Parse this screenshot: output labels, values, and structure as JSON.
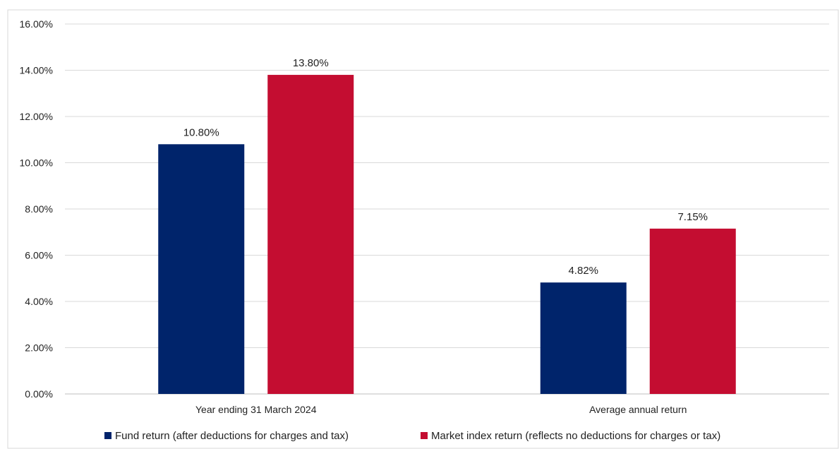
{
  "chart_data": {
    "type": "bar",
    "categories": [
      "Year ending 31 March 2024",
      "Average annual return"
    ],
    "series": [
      {
        "name": "Fund return (after deductions for charges and tax)",
        "values": [
          10.8,
          4.82
        ],
        "labels": [
          "10.80%",
          "4.82%"
        ],
        "color": "#00246b"
      },
      {
        "name": "Market index return (reflects no deductions for charges or tax)",
        "values": [
          13.8,
          7.15
        ],
        "labels": [
          "13.80%",
          "7.15%"
        ],
        "color": "#c40d31"
      }
    ],
    "y_ticks": [
      "0.00%",
      "2.00%",
      "4.00%",
      "6.00%",
      "8.00%",
      "10.00%",
      "12.00%",
      "14.00%",
      "16.00%"
    ],
    "ylim": [
      0,
      16
    ],
    "grid": true,
    "legend_position": "bottom"
  }
}
